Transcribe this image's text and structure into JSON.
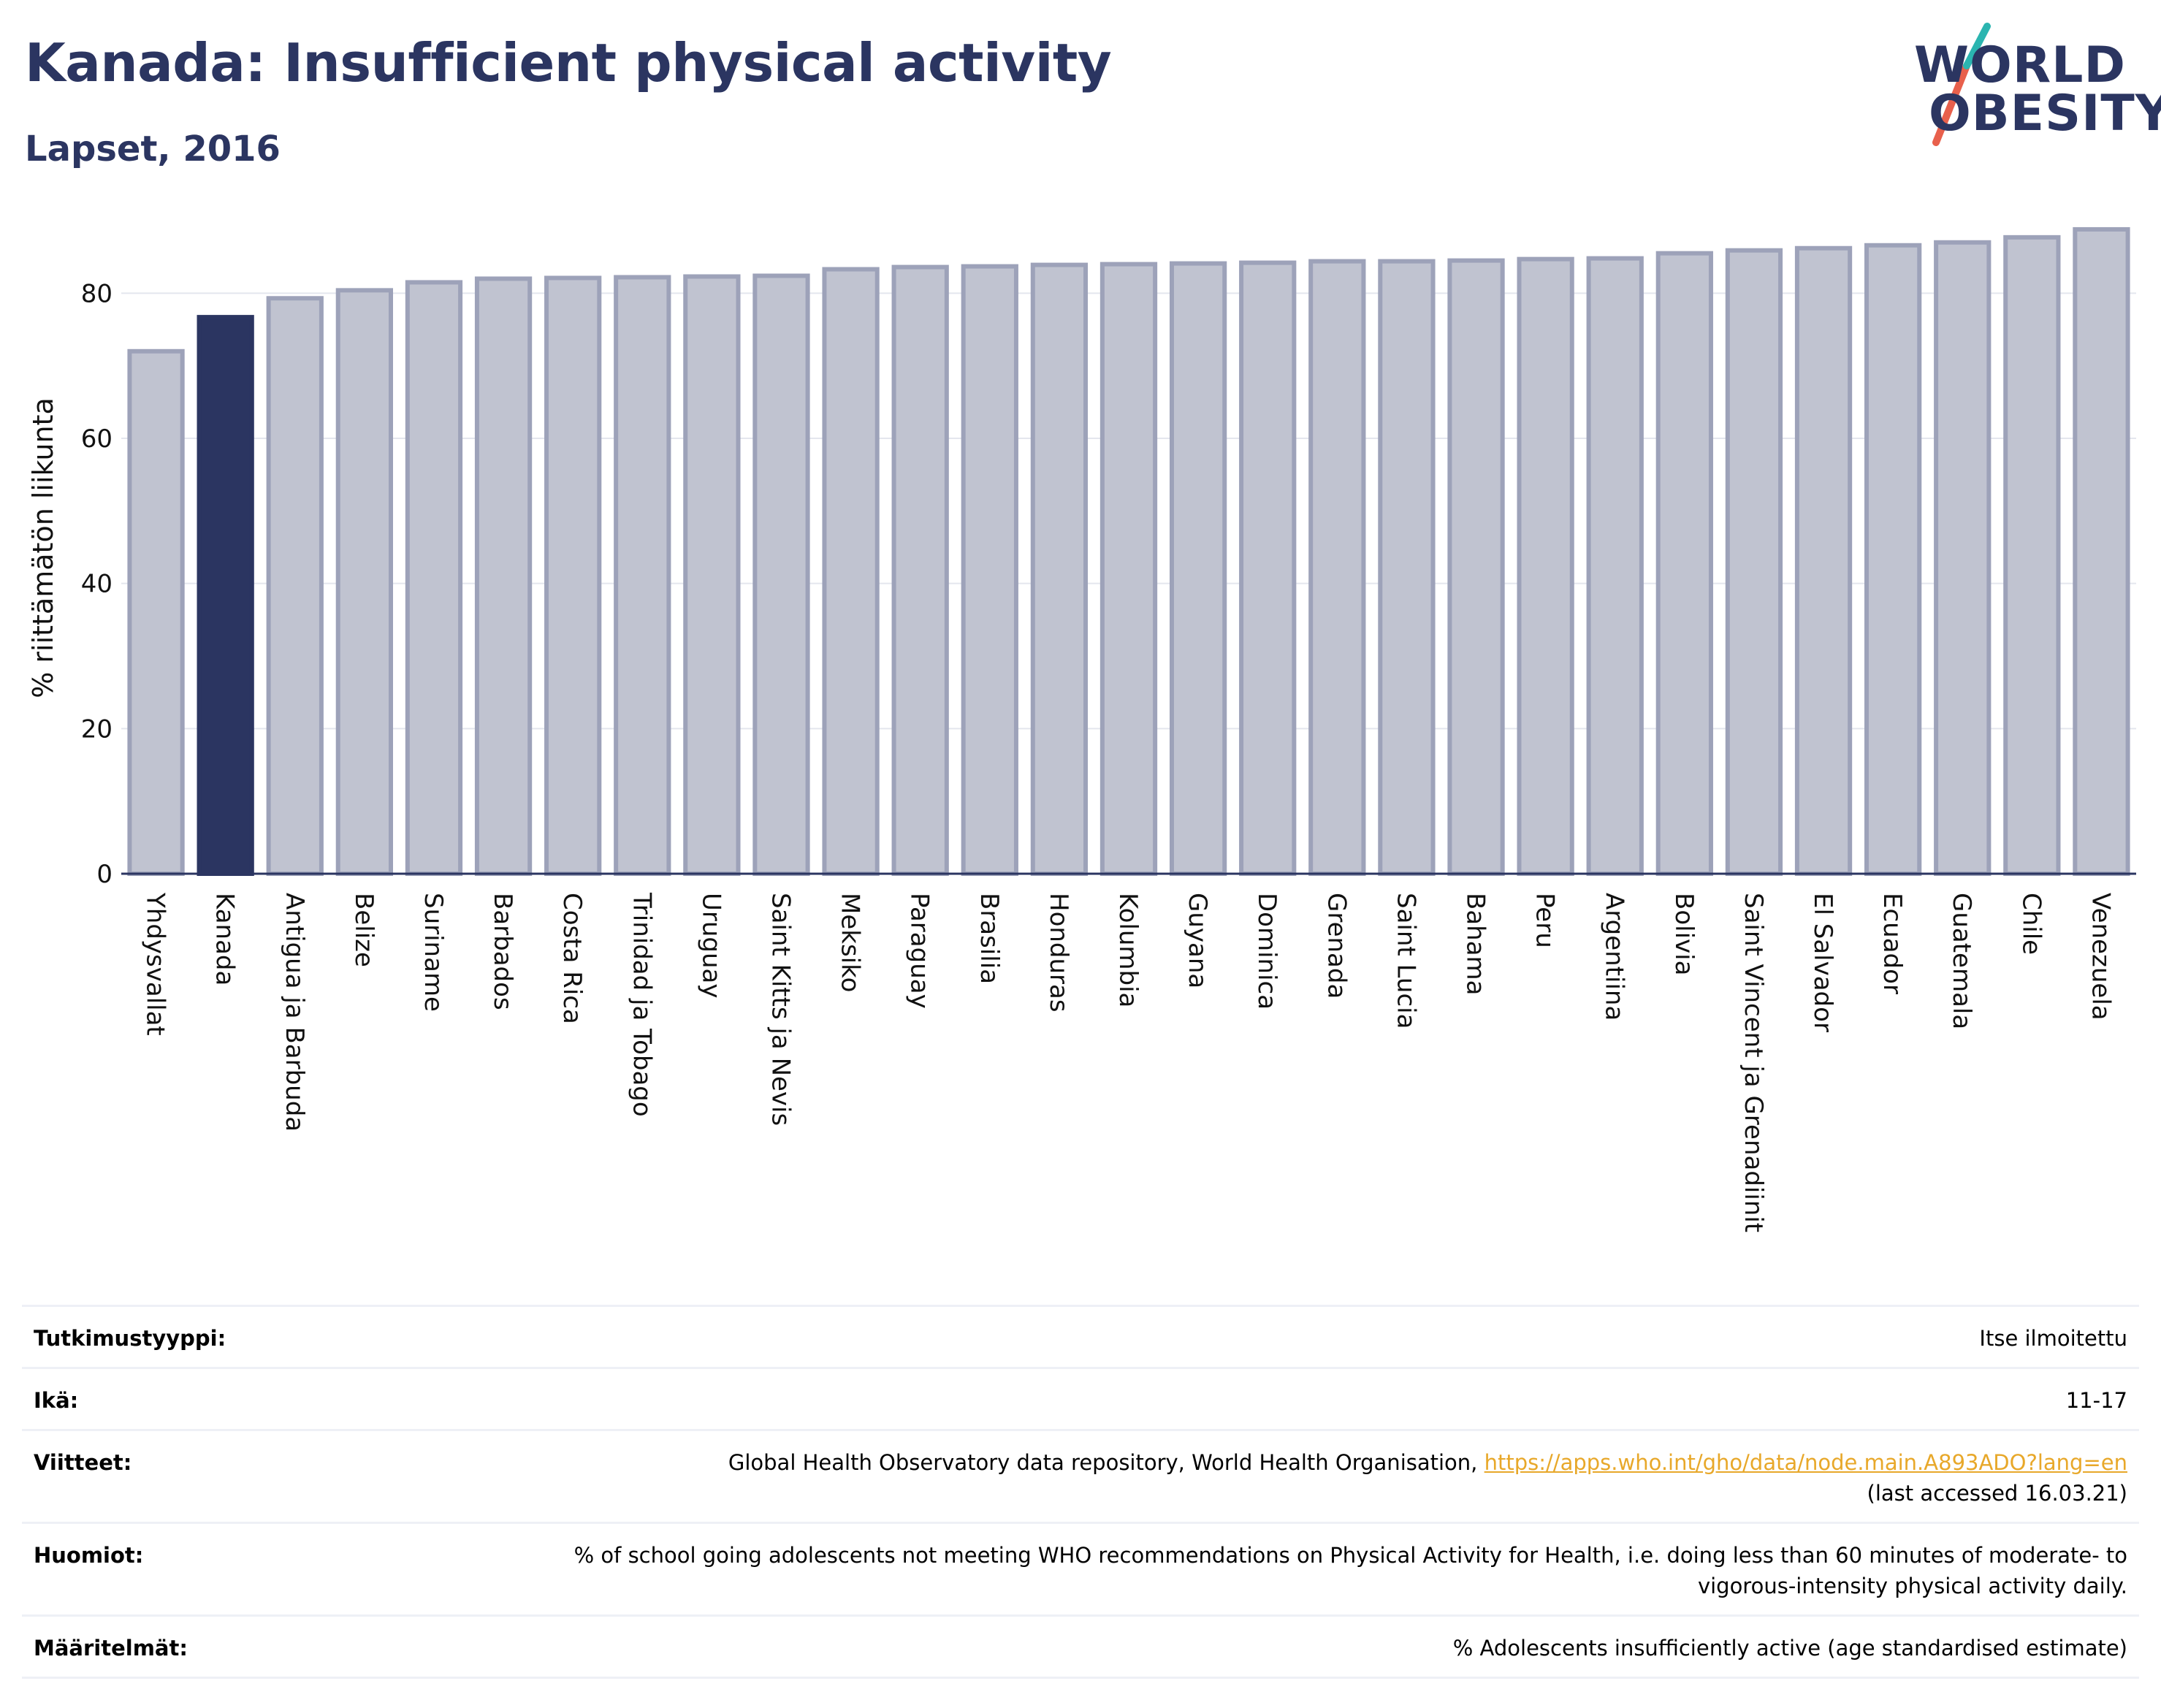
{
  "header": {
    "title": "Kanada: Insufficient physical activity",
    "subtitle": "Lapset, 2016"
  },
  "logo": {
    "line1": "WORLD",
    "line2": "OBESITY",
    "accent_colors": [
      "#2bb5b0",
      "#e8604c"
    ]
  },
  "colors": {
    "highlight": "#2b3561",
    "bar_fill": "#c0c3d0",
    "bar_stroke": "#9da2b9",
    "axis": "#2b3561",
    "link": "#e8a82a"
  },
  "chart_data": {
    "type": "bar",
    "categories": [
      "Yhdysvallat",
      "Kanada",
      "Antigua ja Barbuda",
      "Belize",
      "Suriname",
      "Barbados",
      "Costa Rica",
      "Trinidad ja Tobago",
      "Uruguay",
      "Saint Kitts ja Nevis",
      "Meksiko",
      "Paraguay",
      "Brasilia",
      "Honduras",
      "Kolumbia",
      "Guyana",
      "Dominica",
      "Grenada",
      "Saint Lucia",
      "Bahama",
      "Peru",
      "Argentiina",
      "Bolivia",
      "Saint Vincent ja Grenadiinit",
      "El Salvador",
      "Ecuador",
      "Guatemala",
      "Chile",
      "Venezuela"
    ],
    "values": [
      72.0,
      76.7,
      79.3,
      80.4,
      81.5,
      82.0,
      82.1,
      82.2,
      82.3,
      82.4,
      83.3,
      83.6,
      83.7,
      83.9,
      84.0,
      84.1,
      84.2,
      84.4,
      84.4,
      84.5,
      84.7,
      84.8,
      85.5,
      85.9,
      86.2,
      86.6,
      87.0,
      87.7,
      88.8
    ],
    "highlight": "Kanada",
    "ylabel": "% riittämätön liikunta",
    "xlabel": "",
    "ylim": [
      0,
      90
    ],
    "yticks": [
      0,
      20,
      40,
      60,
      80
    ],
    "grid": true
  },
  "meta": [
    {
      "label": "Tutkimustyyppi:",
      "value": "Itse ilmoitettu"
    },
    {
      "label": "Ikä:",
      "value": "11-17"
    },
    {
      "label": "Viitteet:",
      "value": "Global Health Observatory data repository, World Health Organisation, ",
      "link": "https://apps.who.int/gho/data/node.main.A893ADO?lang=en",
      "value2": "(last accessed 16.03.21)"
    },
    {
      "label": "Huomiot:",
      "value": "% of school going adolescents not meeting WHO recommendations on Physical Activity for Health, i.e. doing less than 60 minutes of moderate- to vigorous-intensity physical activity daily."
    },
    {
      "label": "Määritelmät:",
      "value": "% Adolescents insufficiently active (age standardised estimate)"
    }
  ]
}
